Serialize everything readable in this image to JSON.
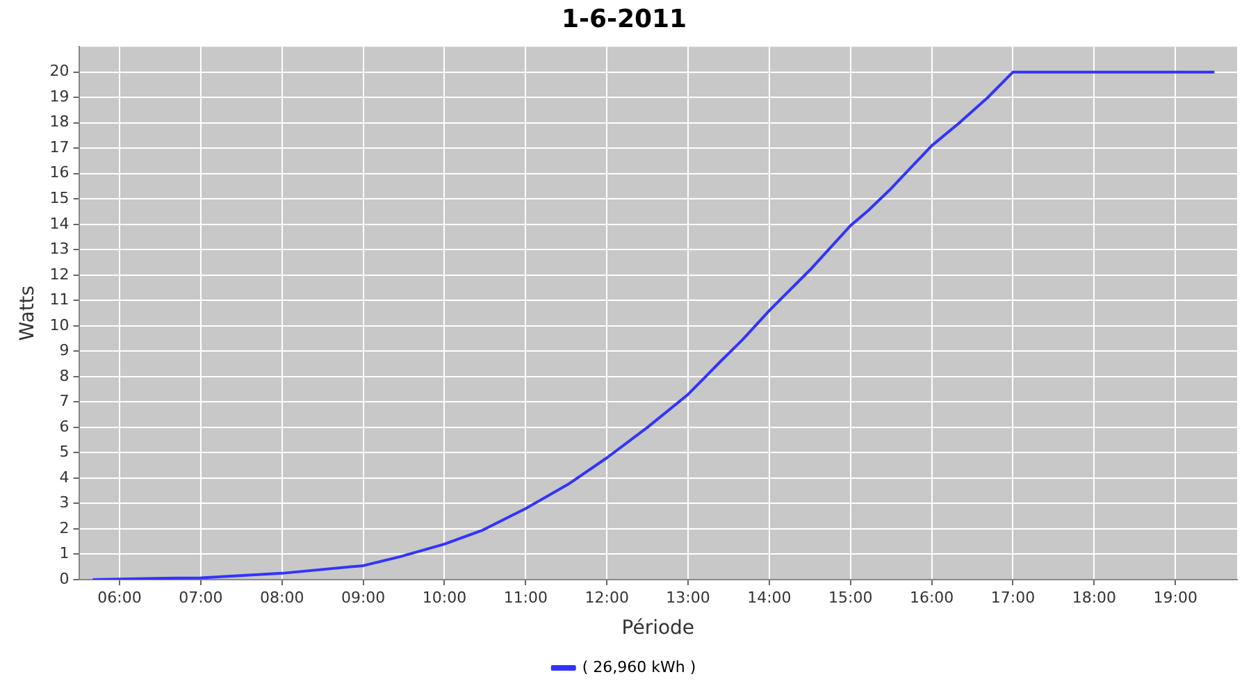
{
  "chart_data": {
    "type": "line",
    "title": "1-6-2011",
    "xlabel": "Période",
    "ylabel": "Watts",
    "xlim": [
      5.5,
      19.76
    ],
    "ylim": [
      0,
      21
    ],
    "xticks": [
      {
        "value": 6,
        "label": "06:00"
      },
      {
        "value": 7,
        "label": "07:00"
      },
      {
        "value": 8,
        "label": "08:00"
      },
      {
        "value": 9,
        "label": "09:00"
      },
      {
        "value": 10,
        "label": "10:00"
      },
      {
        "value": 11,
        "label": "11:00"
      },
      {
        "value": 12,
        "label": "12:00"
      },
      {
        "value": 13,
        "label": "13:00"
      },
      {
        "value": 14,
        "label": "14:00"
      },
      {
        "value": 15,
        "label": "15:00"
      },
      {
        "value": 16,
        "label": "16:00"
      },
      {
        "value": 17,
        "label": "17:00"
      },
      {
        "value": 18,
        "label": "18:00"
      },
      {
        "value": 19,
        "label": "19:00"
      }
    ],
    "yticks": [
      0,
      1,
      2,
      3,
      4,
      5,
      6,
      7,
      8,
      9,
      10,
      11,
      12,
      13,
      14,
      15,
      16,
      17,
      18,
      19,
      20
    ],
    "grid": true,
    "legend": "bottom",
    "marker": "none",
    "line_style": "solid",
    "x": [
      5.67,
      6.41,
      7.0,
      8.0,
      9.0,
      9.45,
      10.0,
      10.47,
      11.0,
      11.52,
      12.0,
      12.5,
      13.0,
      13.4,
      13.67,
      14.0,
      14.5,
      15.0,
      15.22,
      15.48,
      16.0,
      16.34,
      16.69,
      17.0,
      19.48
    ],
    "series": [
      {
        "name": "( 26,960 kWh )",
        "color": "#3333ff",
        "values": [
          0,
          0.05,
          0.07,
          0.25,
          0.55,
          0.9,
          1.4,
          1.95,
          2.8,
          3.75,
          4.8,
          6.0,
          7.3,
          8.6,
          9.45,
          10.6,
          12.2,
          13.95,
          14.55,
          15.35,
          17.1,
          18.0,
          19.0,
          20,
          20
        ]
      }
    ]
  }
}
